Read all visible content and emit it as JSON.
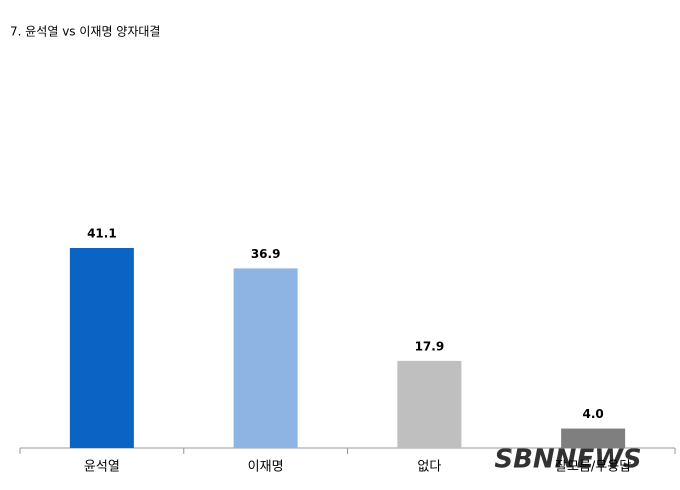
{
  "chart_data": {
    "type": "bar",
    "title": "7. 윤석열 vs 이재명 양자대결",
    "categories": [
      "윤석열",
      "이재명",
      "없다",
      "잘모름/무응답"
    ],
    "values": [
      41.1,
      36.9,
      17.9,
      4.0
    ],
    "value_labels": [
      "41.1",
      "36.9",
      "17.9",
      "4.0"
    ],
    "colors": [
      "#0b63c4",
      "#8db4e2",
      "#bfbfbf",
      "#7f7f7f"
    ],
    "ylim": [
      0,
      60
    ],
    "grid": false,
    "watermark": "SBNNEWS"
  }
}
